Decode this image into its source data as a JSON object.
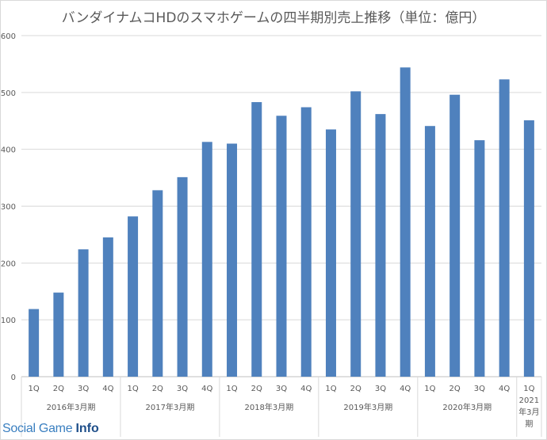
{
  "chart_data": {
    "type": "bar",
    "title": "バンダイナムコHDのスマホゲームの四半期別売上推移（単位：億円）",
    "xlabel": "",
    "ylabel": "",
    "ylim": [
      0,
      600
    ],
    "yticks": [
      0,
      100,
      200,
      300,
      400,
      500,
      600
    ],
    "grid": true,
    "bar_color": "#4f81bd",
    "categories": [
      "1Q",
      "2Q",
      "3Q",
      "4Q",
      "1Q",
      "2Q",
      "3Q",
      "4Q",
      "1Q",
      "2Q",
      "3Q",
      "4Q",
      "1Q",
      "2Q",
      "3Q",
      "4Q",
      "1Q",
      "2Q",
      "3Q",
      "4Q",
      "1Q"
    ],
    "values": [
      119,
      148,
      224,
      245,
      282,
      328,
      351,
      413,
      410,
      483,
      459,
      474,
      435,
      502,
      462,
      544,
      441,
      496,
      416,
      523,
      451
    ],
    "groups": [
      {
        "label": "2016年3月期",
        "count": 4
      },
      {
        "label": "2017年3月期",
        "count": 4
      },
      {
        "label": "2018年3月期",
        "count": 4
      },
      {
        "label": "2019年3月期",
        "count": 4
      },
      {
        "label": "2020年3月期",
        "count": 4
      },
      {
        "label": "2021年3月期",
        "count": 1
      }
    ]
  },
  "watermark": {
    "part1": "Social Game ",
    "part2": "Info"
  }
}
